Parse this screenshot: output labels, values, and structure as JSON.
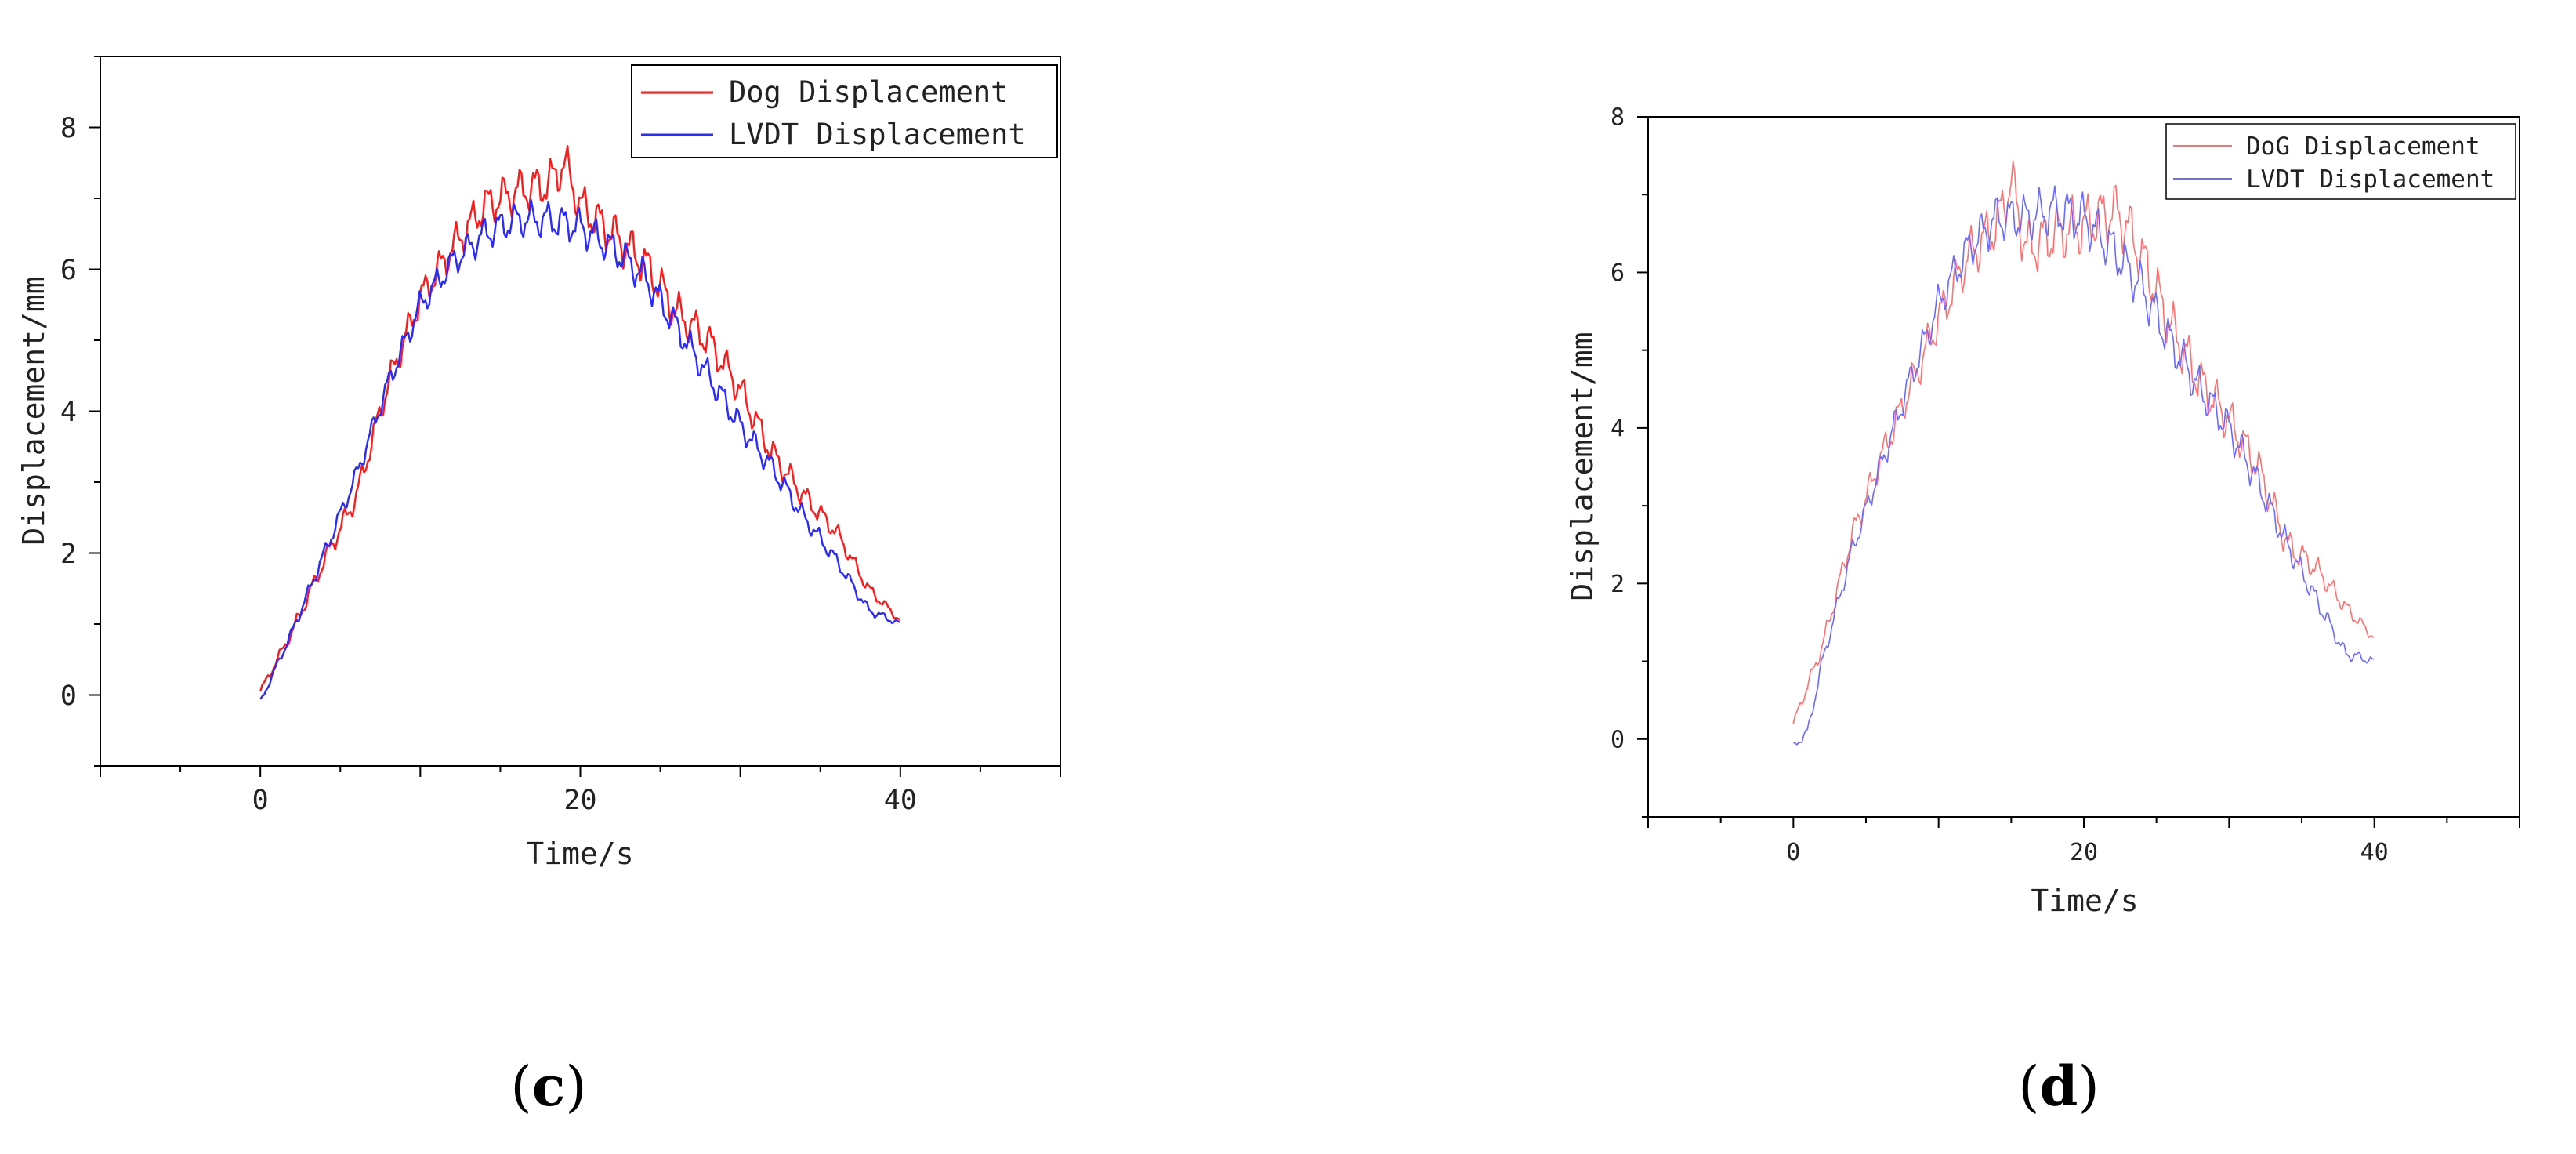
{
  "chart_data": [
    {
      "type": "line",
      "panel_label_paren_open": "(",
      "panel_label_letter": "c",
      "panel_label_paren_close": ")",
      "title": "",
      "xlabel": "Time/s",
      "ylabel": "Displacement/mm",
      "xlim": [
        -10,
        50
      ],
      "ylim": [
        -1,
        9
      ],
      "xticks": [
        0,
        20,
        40
      ],
      "yticks": [
        0,
        2,
        4,
        6,
        8
      ],
      "grid": false,
      "legend_position": "top-right",
      "series": [
        {
          "name": "Dog Displacement",
          "color": "#ff1a1a",
          "noise": 0.5,
          "x": [
            0,
            2,
            4,
            6,
            8,
            10,
            12,
            14,
            16,
            18,
            19,
            20,
            22,
            24,
            26,
            28,
            30,
            32,
            34,
            36,
            38,
            40
          ],
          "y": [
            0.05,
            0.9,
            1.9,
            2.8,
            4.4,
            5.6,
            6.3,
            6.9,
            7.1,
            7.2,
            7.5,
            6.9,
            6.5,
            6.1,
            5.4,
            5.0,
            4.3,
            3.4,
            2.8,
            2.3,
            1.5,
            1.05
          ]
        },
        {
          "name": "LVDT Displacement",
          "color": "#2a2aff",
          "noise": 0.4,
          "x": [
            0,
            2,
            4,
            6,
            8,
            10,
            12,
            14,
            16,
            18,
            20,
            22,
            24,
            26,
            28,
            30,
            32,
            34,
            36,
            38,
            40
          ],
          "y": [
            -0.1,
            0.9,
            2.0,
            3.1,
            4.4,
            5.5,
            6.1,
            6.5,
            6.7,
            6.7,
            6.6,
            6.3,
            5.9,
            5.2,
            4.5,
            3.8,
            3.2,
            2.5,
            1.9,
            1.2,
            1.0
          ]
        }
      ]
    },
    {
      "type": "line",
      "panel_label_paren_open": "(",
      "panel_label_letter": "d",
      "panel_label_paren_close": ")",
      "title": "",
      "xlabel": "Time/s",
      "ylabel": "Displacement/mm",
      "xlim": [
        -10,
        50
      ],
      "ylim": [
        -1,
        8
      ],
      "xticks": [
        0,
        20,
        40
      ],
      "yticks": [
        0,
        2,
        4,
        6,
        8
      ],
      "grid": false,
      "legend_position": "top-right",
      "series": [
        {
          "name": "DoG Displacement",
          "color": "#ff7070",
          "noise": 0.6,
          "x": [
            0,
            2,
            4,
            6,
            8,
            10,
            12,
            14,
            15,
            16,
            18,
            20,
            22,
            23,
            24,
            26,
            28,
            30,
            32,
            34,
            36,
            38,
            40
          ],
          "y": [
            0.2,
            1.2,
            2.6,
            3.6,
            4.5,
            5.4,
            6.2,
            6.6,
            7.2,
            6.3,
            6.5,
            6.6,
            6.8,
            6.6,
            6.2,
            5.3,
            4.6,
            4.1,
            3.5,
            2.5,
            2.2,
            1.7,
            1.3
          ]
        },
        {
          "name": "LVDT Displacement",
          "color": "#6a6aff",
          "noise": 0.5,
          "x": [
            0,
            1,
            2,
            4,
            6,
            8,
            10,
            12,
            14,
            16,
            18,
            20,
            22,
            24,
            26,
            28,
            30,
            32,
            34,
            36,
            38,
            40
          ],
          "y": [
            -0.1,
            0.1,
            1.0,
            2.4,
            3.5,
            4.6,
            5.6,
            6.3,
            6.7,
            6.7,
            6.8,
            6.7,
            6.3,
            5.8,
            5.1,
            4.5,
            4.0,
            3.3,
            2.5,
            1.8,
            1.1,
            1.0
          ]
        }
      ]
    }
  ]
}
